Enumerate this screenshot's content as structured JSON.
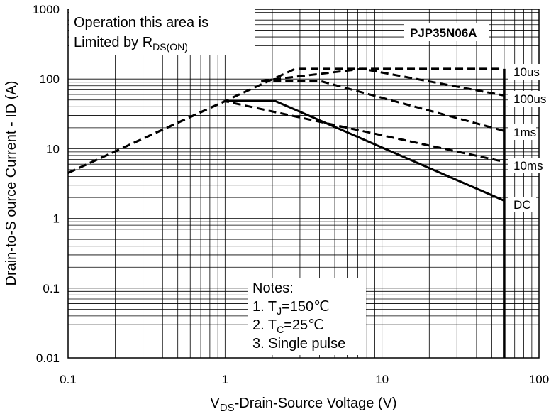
{
  "chart_data": {
    "type": "line",
    "log_x": true,
    "log_y": true,
    "xlim": [
      0.1,
      100
    ],
    "ylim": [
      0.01,
      1000
    ],
    "grid": true,
    "xlabel": {
      "main": "V",
      "sub": "DS",
      "rest": "-Drain-Source Voltage (V)"
    },
    "ylabel": "Drain-to-S ource Current - ID (A)",
    "x_ticks": [
      "0.1",
      "1",
      "10",
      "100"
    ],
    "y_ticks": [
      "0.01",
      "0.1",
      "1",
      "10",
      "100",
      "1000"
    ],
    "part_number": "PJP35N06A",
    "rds_note": {
      "line1": "Operation this area is",
      "line2_main": "Limited  by R",
      "line2_sub": "DS(ON)"
    },
    "notes": {
      "title": "Notes:",
      "n1": {
        "pre": "1. T",
        "sub": "J",
        "post": "=150℃"
      },
      "n2": {
        "pre": "2. T",
        "sub": "C",
        "post": "=25℃"
      },
      "n3": "3. Single pulse"
    },
    "vds_max": 60,
    "series": [
      {
        "name": "10us",
        "style": "dashed",
        "x": [
          0.1,
          2.8,
          26,
          60
        ],
        "y": [
          4.5,
          140,
          140,
          140
        ]
      },
      {
        "name": "100us",
        "style": "dashed",
        "x": [
          1.7,
          7.5,
          60
        ],
        "y": [
          94,
          140,
          58
        ]
      },
      {
        "name": "1ms",
        "style": "dashed",
        "x": [
          1.7,
          4,
          60
        ],
        "y": [
          94,
          94,
          18
        ]
      },
      {
        "name": "10ms",
        "style": "dashed",
        "x": [
          0.1,
          1,
          60
        ],
        "y": [
          4.5,
          48,
          6.5
        ]
      },
      {
        "name": "DC",
        "style": "solid",
        "x": [
          1,
          2.1,
          60
        ],
        "y": [
          48,
          48,
          1.8
        ]
      }
    ]
  }
}
